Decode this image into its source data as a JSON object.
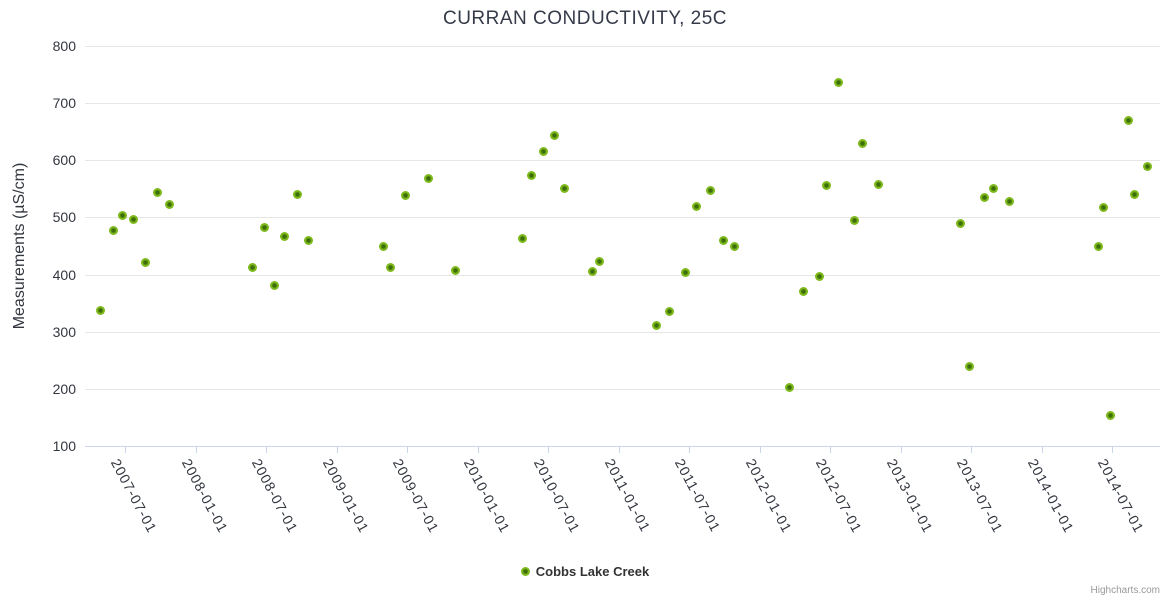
{
  "credits": {
    "label": "Highcharts.com"
  },
  "chart_data": {
    "type": "scatter",
    "title": "CURRAN CONDUCTIVITY, 25C",
    "xlabel": "",
    "ylabel": "Measurements (µS/cm)",
    "ylim": [
      100,
      800
    ],
    "y_ticks": [
      100,
      200,
      300,
      400,
      500,
      600,
      700,
      800
    ],
    "xlim": [
      "2007-03-19",
      "2014-11-03"
    ],
    "x_ticks": [
      "2007-07-01",
      "2008-01-01",
      "2008-07-01",
      "2009-01-01",
      "2009-07-01",
      "2010-01-01",
      "2010-07-01",
      "2011-01-01",
      "2011-07-01",
      "2012-01-01",
      "2012-07-01",
      "2013-01-01",
      "2013-07-01",
      "2014-01-01",
      "2014-07-01"
    ],
    "grid": true,
    "legend_position": "bottom",
    "colors": {
      "marker_fill": "#7db91c",
      "marker_core": "#3e6e0a",
      "grid": "#e6e6e6",
      "axis_line": "#ccd6eb",
      "label_text": "#32363f",
      "title_text": "#363b4a",
      "legend_text": "#333333",
      "credits_text": "#999999"
    },
    "series": [
      {
        "name": "Cobbs Lake Creek",
        "points": [
          [
            "2007-04-27",
            337
          ],
          [
            "2007-06-02",
            477
          ],
          [
            "2007-06-23",
            503
          ],
          [
            "2007-07-22",
            496
          ],
          [
            "2007-08-24",
            422
          ],
          [
            "2007-09-24",
            543
          ],
          [
            "2007-10-25",
            522
          ],
          [
            "2008-05-27",
            413
          ],
          [
            "2008-06-25",
            482
          ],
          [
            "2008-07-23",
            381
          ],
          [
            "2008-08-18",
            467
          ],
          [
            "2008-09-21",
            541
          ],
          [
            "2008-10-17",
            459
          ],
          [
            "2009-04-30",
            449
          ],
          [
            "2009-05-20",
            412
          ],
          [
            "2009-06-26",
            538
          ],
          [
            "2009-08-24",
            569
          ],
          [
            "2009-11-02",
            408
          ],
          [
            "2010-04-26",
            464
          ],
          [
            "2010-05-19",
            574
          ],
          [
            "2010-06-20",
            616
          ],
          [
            "2010-07-18",
            643
          ],
          [
            "2010-08-13",
            550
          ],
          [
            "2010-10-24",
            405
          ],
          [
            "2010-11-12",
            423
          ],
          [
            "2011-04-09",
            311
          ],
          [
            "2011-05-13",
            336
          ],
          [
            "2011-06-23",
            404
          ],
          [
            "2011-07-21",
            519
          ],
          [
            "2011-08-27",
            548
          ],
          [
            "2011-09-29",
            460
          ],
          [
            "2011-10-28",
            449
          ],
          [
            "2012-03-18",
            202
          ],
          [
            "2012-04-24",
            371
          ],
          [
            "2012-06-04",
            397
          ],
          [
            "2012-06-22",
            556
          ],
          [
            "2012-07-23",
            737
          ],
          [
            "2012-09-03",
            495
          ],
          [
            "2012-09-23",
            630
          ],
          [
            "2012-11-04",
            557
          ],
          [
            "2013-06-05",
            489
          ],
          [
            "2013-06-28",
            240
          ],
          [
            "2013-08-06",
            535
          ],
          [
            "2013-08-29",
            550
          ],
          [
            "2013-10-10",
            528
          ],
          [
            "2014-05-27",
            449
          ],
          [
            "2014-06-09",
            518
          ],
          [
            "2014-06-28",
            153
          ],
          [
            "2014-08-13",
            669
          ],
          [
            "2014-08-29",
            540
          ],
          [
            "2014-10-01",
            589
          ]
        ]
      }
    ]
  }
}
